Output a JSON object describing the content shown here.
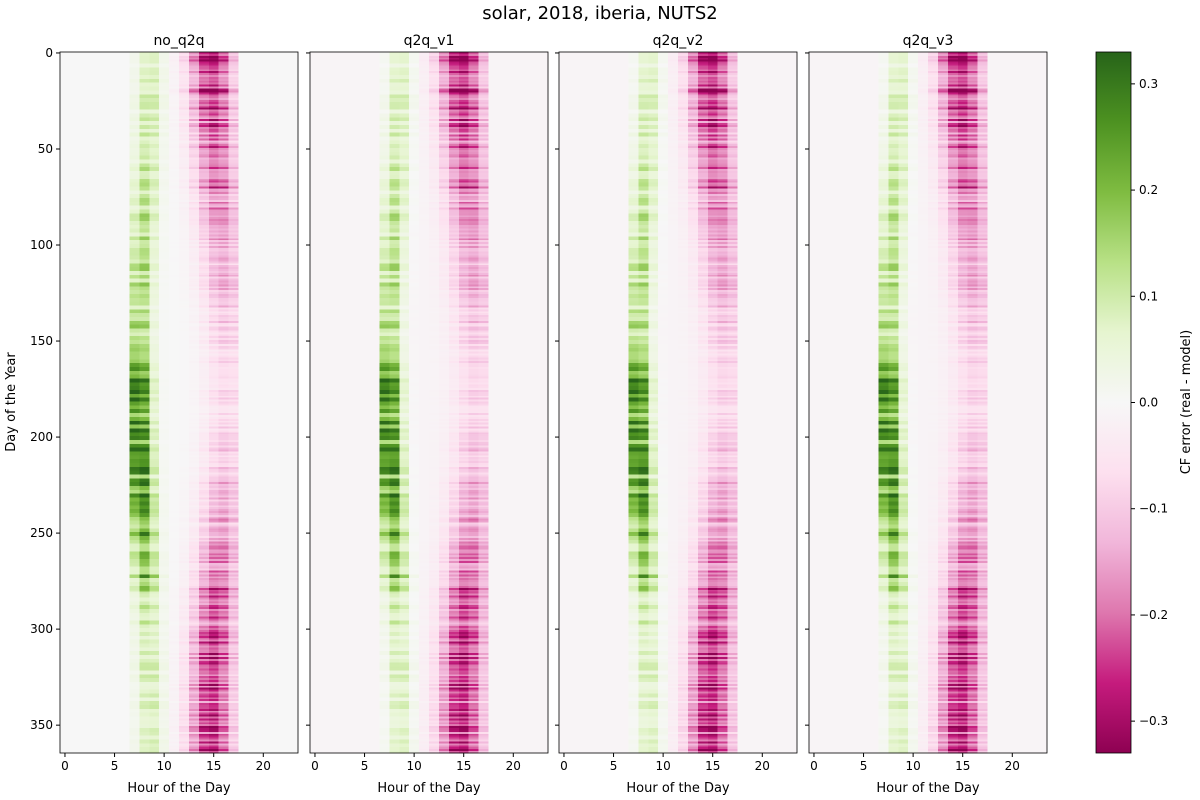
{
  "figure": {
    "title": "solar, 2018, iberia, NUTS2"
  },
  "chart_data": {
    "type": "heatmap",
    "xlabel": "Hour of the Day",
    "ylabel": "Day of the Year",
    "x_ticks": [
      0,
      5,
      10,
      15,
      20
    ],
    "y_ticks": [
      0,
      50,
      100,
      150,
      200,
      250,
      300,
      350
    ],
    "xlim": [
      -0.5,
      23.5
    ],
    "ylim": [
      364.5,
      -0.5
    ],
    "grid": false,
    "panels": [
      {
        "title": "no_q2q",
        "zero_level_tint": 0.0
      },
      {
        "title": "q2q_v1",
        "zero_level_tint": -0.01
      },
      {
        "title": "q2q_v2",
        "zero_level_tint": -0.01
      },
      {
        "title": "q2q_v3",
        "zero_level_tint": -0.01
      }
    ],
    "pattern_summary": {
      "morning_positive_error_hours": [
        6,
        10
      ],
      "afternoon_negative_error_hours": [
        10,
        18
      ],
      "peak_positive_error": 0.28,
      "peak_negative_error": -0.3,
      "strongest_positive_days": [
        160,
        280
      ],
      "strongest_negative_days": [
        0,
        60,
        310,
        365
      ]
    },
    "colorbar": {
      "label": "CF error (real - model)",
      "colormap": "PiYG",
      "vmin": -0.33,
      "vmax": 0.33,
      "ticks": [
        "0.3",
        "0.2",
        "0.1",
        "0.0",
        "−0.1",
        "−0.2",
        "−0.3"
      ],
      "tick_values": [
        0.3,
        0.2,
        0.1,
        0.0,
        -0.1,
        -0.2,
        -0.3
      ],
      "colors": [
        "#8e0152",
        "#c51b7d",
        "#de77ae",
        "#f1b6da",
        "#fde0ef",
        "#f7f7f7",
        "#e6f5d0",
        "#b8e186",
        "#7fbc41",
        "#4d9221",
        "#276419"
      ]
    }
  }
}
